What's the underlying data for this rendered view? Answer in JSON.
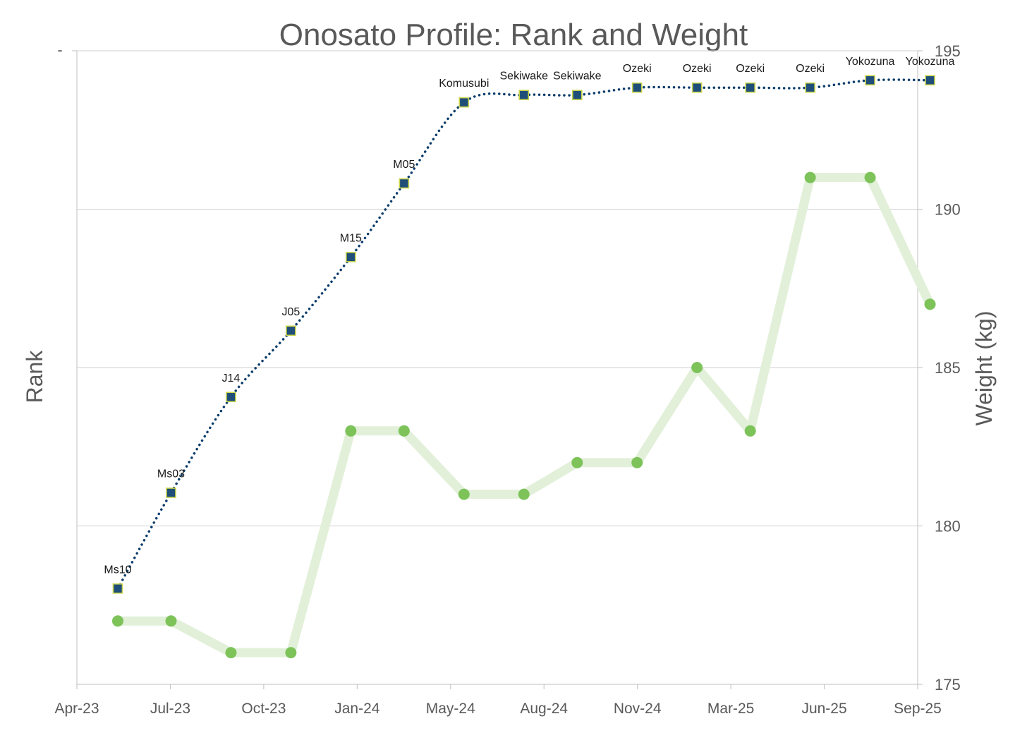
{
  "chart_data": {
    "type": "line",
    "title": "Onosato Profile: Rank and Weight",
    "left_axis_label": "Rank",
    "left_axis_tick_labels": [
      "-"
    ],
    "right_axis_label": "Weight (kg)",
    "right_ylim": [
      175,
      195
    ],
    "right_ticks": [
      175,
      180,
      185,
      190,
      195
    ],
    "x_tick_labels": [
      "Apr-23",
      "Jul-23",
      "Oct-23",
      "Jan-24",
      "May-24",
      "Aug-24",
      "Nov-24",
      "Mar-25",
      "Jun-25",
      "Sep-25"
    ],
    "x_range": [
      "2023-04-01",
      "2025-09-01"
    ],
    "grid": true,
    "series": [
      {
        "axis": "left",
        "style": "dotted",
        "color": "#0b3d6b",
        "marker_color": "#1f4e79",
        "marker_edge": "#c9d44a",
        "x": [
          "2023-05-14",
          "2023-07-09",
          "2023-09-10",
          "2023-11-12",
          "2024-01-14",
          "2024-03-10",
          "2024-05-12",
          "2024-07-14",
          "2024-09-08",
          "2024-11-10",
          "2025-01-12",
          "2025-03-09",
          "2025-05-11",
          "2025-07-13",
          "2025-09-14"
        ],
        "labels": [
          "Ms10",
          "Ms03",
          "J14",
          "J05",
          "M15",
          "M05",
          "Komusubi",
          "Sekiwake",
          "Sekiwake",
          "Ozeki",
          "Ozeki",
          "Ozeki",
          "Ozeki",
          "Yokozuna",
          "Yokozuna"
        ],
        "values": [
          -70,
          -57,
          -44,
          -35,
          -25,
          -15,
          -4,
          -3,
          -3,
          -2,
          -2,
          -2,
          -2,
          -1,
          -1
        ]
      },
      {
        "axis": "right",
        "style": "solid",
        "line_color": "#e2f0d9",
        "marker_color": "#7dc35a",
        "x": [
          "2023-05-14",
          "2023-07-09",
          "2023-09-10",
          "2023-11-12",
          "2024-01-14",
          "2024-03-10",
          "2024-05-12",
          "2024-07-14",
          "2024-09-08",
          "2024-11-10",
          "2025-01-12",
          "2025-03-09",
          "2025-05-11",
          "2025-07-13",
          "2025-09-14"
        ],
        "values": [
          177,
          177,
          176,
          176,
          183,
          183,
          181,
          181,
          182,
          182,
          185,
          183,
          191,
          191,
          187
        ]
      }
    ]
  }
}
